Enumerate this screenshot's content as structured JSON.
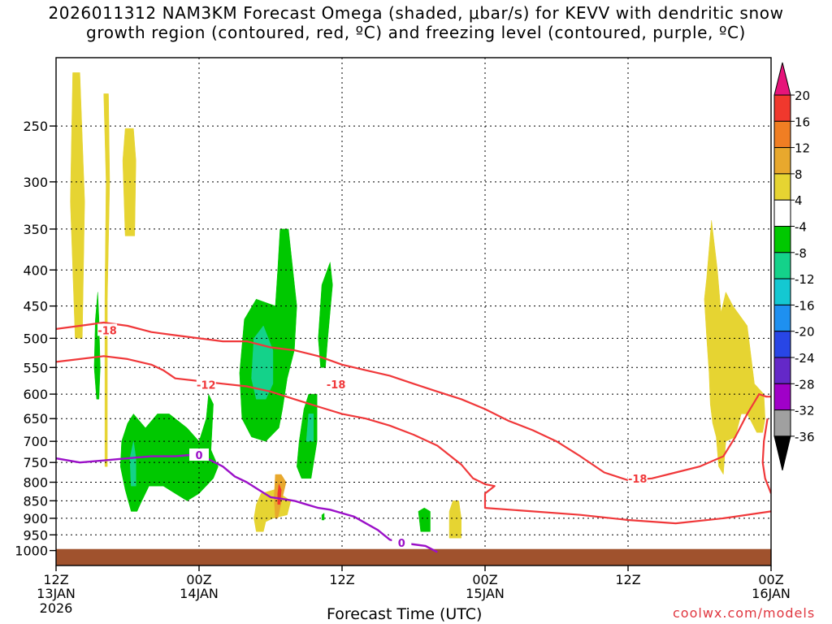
{
  "title_lines": [
    "2026011312 NAM3KM Forecast Omega (shaded, μbar/s) for KEVV with dendritic snow",
    "growth region (contoured, red, ºC) and freezing level (contoured, purple, ºC)"
  ],
  "credit": "coolwx.com/models",
  "chart_data": {
    "type": "heatmap",
    "title": "2026011312 NAM3KM Forecast Omega (shaded, μbar/s) for KEVV with dendritic snow growth region (contoured, red, ºC) and freezing level (contoured, purple, ºC)",
    "xlabel": "Forecast Time (UTC)",
    "ylabel": "",
    "x_unit": "hours from 2026-01-13 12Z",
    "xlim": [
      0,
      60
    ],
    "ylim": [
      1050,
      200
    ],
    "y_scale": "log-pressure",
    "grid": true,
    "x_ticks": [
      {
        "hour": 0,
        "label": "12Z",
        "sub": "13JAN",
        "sub2": "2026"
      },
      {
        "hour": 12,
        "label": "00Z",
        "sub": "14JAN",
        "sub2": ""
      },
      {
        "hour": 24,
        "label": "12Z",
        "sub": "",
        "sub2": ""
      },
      {
        "hour": 36,
        "label": "00Z",
        "sub": "15JAN",
        "sub2": ""
      },
      {
        "hour": 48,
        "label": "12Z",
        "sub": "",
        "sub2": ""
      },
      {
        "hour": 60,
        "label": "00Z",
        "sub": "16JAN",
        "sub2": ""
      }
    ],
    "y_ticks": [
      250,
      300,
      350,
      400,
      450,
      500,
      550,
      600,
      650,
      700,
      750,
      800,
      850,
      900,
      950,
      1000
    ],
    "colorbar": {
      "unit": "μbar/s",
      "labels": [
        "20",
        "16",
        "12",
        "8",
        "4",
        "-4",
        "-8",
        "-12",
        "-16",
        "-20",
        "-24",
        "-28",
        "-32",
        "-36"
      ],
      "bands": [
        {
          "range": "16 to 20",
          "color": "#f0382d"
        },
        {
          "range": "12 to 16",
          "color": "#f07e23"
        },
        {
          "range": "8 to 12",
          "color": "#e8a82d"
        },
        {
          "range": "4 to 8",
          "color": "#e6d432"
        },
        {
          "range": "-4 to 4",
          "color": "#ffffff"
        },
        {
          "range": "-8 to -4",
          "color": "#00c800"
        },
        {
          "range": "-12 to -8",
          "color": "#14d28a"
        },
        {
          "range": "-16 to -12",
          "color": "#14c8d2"
        },
        {
          "range": "-20 to -16",
          "color": "#1e90f0"
        },
        {
          "range": "-24 to -20",
          "color": "#2846e6"
        },
        {
          "range": "-28 to -24",
          "color": "#6428c8"
        },
        {
          "range": "-32 to -28",
          "color": "#a000c8"
        },
        {
          "range": "-36 to -32",
          "color": "#a0a0a0"
        }
      ],
      "over_color": "#e6147a",
      "under_color": "#000000"
    },
    "omega_regions": [
      {
        "band": "4 to 8",
        "color": "#e6d432",
        "pts": [
          [
            1.6,
            500
          ],
          [
            1.2,
            320
          ],
          [
            1.4,
            210
          ],
          [
            2.0,
            210
          ],
          [
            2.4,
            320
          ],
          [
            2.2,
            500
          ]
        ]
      },
      {
        "band": "4 to 8",
        "color": "#e6d432",
        "pts": [
          [
            4.1,
            760
          ],
          [
            4.1,
            440
          ],
          [
            4.2,
            300
          ],
          [
            4.0,
            225
          ],
          [
            4.4,
            225
          ],
          [
            4.5,
            300
          ],
          [
            4.3,
            440
          ],
          [
            4.3,
            760
          ]
        ]
      },
      {
        "band": "4 to 8",
        "color": "#e6d432",
        "pts": [
          [
            5.8,
            358
          ],
          [
            5.6,
            280
          ],
          [
            5.8,
            252
          ],
          [
            6.5,
            252
          ],
          [
            6.7,
            280
          ],
          [
            6.6,
            358
          ]
        ]
      },
      {
        "band": "-8 to -4",
        "color": "#00c800",
        "pts": [
          [
            3.2,
            550
          ],
          [
            3.3,
            470
          ],
          [
            3.5,
            430
          ],
          [
            3.6,
            470
          ],
          [
            3.7,
            550
          ],
          [
            3.6,
            610
          ],
          [
            3.4,
            610
          ]
        ]
      },
      {
        "band": "-8 to -4",
        "color": "#00c800",
        "pts": [
          [
            5.5,
            700
          ],
          [
            6.0,
            660
          ],
          [
            6.5,
            640
          ],
          [
            7.5,
            670
          ],
          [
            8.5,
            640
          ],
          [
            9.5,
            640
          ],
          [
            11.0,
            670
          ],
          [
            12.0,
            700
          ],
          [
            12.6,
            650
          ],
          [
            12.8,
            600
          ],
          [
            13.2,
            620
          ],
          [
            13.0,
            720
          ],
          [
            13.6,
            760
          ],
          [
            13.2,
            790
          ],
          [
            12.0,
            830
          ],
          [
            11.0,
            850
          ],
          [
            10.0,
            830
          ],
          [
            9.0,
            810
          ],
          [
            7.8,
            810
          ],
          [
            7.2,
            850
          ],
          [
            6.8,
            880
          ],
          [
            6.3,
            880
          ],
          [
            5.8,
            820
          ],
          [
            5.4,
            760
          ]
        ]
      },
      {
        "band": "-12 to -8",
        "color": "#14d28a",
        "pts": [
          [
            6.2,
            740
          ],
          [
            6.5,
            700
          ],
          [
            6.7,
            740
          ],
          [
            6.7,
            810
          ],
          [
            6.3,
            810
          ]
        ]
      },
      {
        "band": "-8 to -4",
        "color": "#00c800",
        "pts": [
          [
            15.6,
            650
          ],
          [
            15.4,
            560
          ],
          [
            15.8,
            470
          ],
          [
            16.8,
            440
          ],
          [
            18.4,
            450
          ],
          [
            18.6,
            400
          ],
          [
            18.8,
            350
          ],
          [
            19.5,
            350
          ],
          [
            20.2,
            450
          ],
          [
            20.0,
            520
          ],
          [
            19.4,
            570
          ],
          [
            19.0,
            630
          ],
          [
            18.7,
            670
          ],
          [
            17.6,
            700
          ],
          [
            16.4,
            690
          ]
        ]
      },
      {
        "band": "-12 to -8",
        "color": "#14d28a",
        "pts": [
          [
            16.4,
            570
          ],
          [
            16.6,
            500
          ],
          [
            17.4,
            480
          ],
          [
            18.2,
            520
          ],
          [
            18.2,
            580
          ],
          [
            17.6,
            610
          ],
          [
            16.8,
            610
          ]
        ]
      },
      {
        "band": "-8 to -4",
        "color": "#00c800",
        "pts": [
          [
            20.2,
            760
          ],
          [
            20.4,
            700
          ],
          [
            20.8,
            630
          ],
          [
            21.2,
            600
          ],
          [
            21.9,
            600
          ],
          [
            21.9,
            700
          ],
          [
            21.4,
            790
          ],
          [
            20.6,
            790
          ]
        ]
      },
      {
        "band": "-12 to -8",
        "color": "#14d28a",
        "pts": [
          [
            21.0,
            700
          ],
          [
            21.2,
            640
          ],
          [
            21.6,
            640
          ],
          [
            21.6,
            700
          ]
        ]
      },
      {
        "band": "-8 to -4",
        "color": "#00c800",
        "pts": [
          [
            22.0,
            500
          ],
          [
            22.3,
            420
          ],
          [
            23.0,
            390
          ],
          [
            23.2,
            420
          ],
          [
            22.8,
            500
          ],
          [
            22.6,
            550
          ],
          [
            22.2,
            550
          ]
        ]
      },
      {
        "band": "-8 to -4",
        "color": "#00c800",
        "pts": [
          [
            30.4,
            880
          ],
          [
            30.9,
            870
          ],
          [
            31.4,
            880
          ],
          [
            31.4,
            940
          ],
          [
            30.6,
            940
          ]
        ]
      },
      {
        "band": "-8 to -4",
        "color": "#00c800",
        "pts": [
          [
            22.3,
            890
          ],
          [
            22.5,
            885
          ],
          [
            22.5,
            905
          ],
          [
            22.3,
            905
          ]
        ]
      },
      {
        "band": "4 to 8",
        "color": "#e6d432",
        "pts": [
          [
            16.8,
            860
          ],
          [
            17.2,
            830
          ],
          [
            18.3,
            820
          ],
          [
            19.7,
            850
          ],
          [
            19.4,
            890
          ],
          [
            18.2,
            900
          ],
          [
            17.6,
            910
          ],
          [
            17.4,
            940
          ],
          [
            16.8,
            940
          ],
          [
            16.6,
            900
          ]
        ]
      },
      {
        "band": "8 to 12",
        "color": "#e8a82d",
        "pts": [
          [
            18.3,
            840
          ],
          [
            18.4,
            780
          ],
          [
            18.9,
            780
          ],
          [
            19.3,
            800
          ],
          [
            19.0,
            840
          ],
          [
            18.6,
            900
          ],
          [
            18.4,
            900
          ]
        ]
      },
      {
        "band": "16 to 20",
        "color": "#f0382d",
        "pts": [
          [
            18.6,
            830
          ],
          [
            18.7,
            805
          ],
          [
            18.9,
            820
          ],
          [
            18.8,
            860
          ],
          [
            18.6,
            860
          ]
        ]
      },
      {
        "band": "4 to 8",
        "color": "#e6d432",
        "pts": [
          [
            33.0,
            960
          ],
          [
            33.0,
            880
          ],
          [
            33.3,
            850
          ],
          [
            33.8,
            850
          ],
          [
            34.0,
            900
          ],
          [
            34.0,
            960
          ]
        ]
      },
      {
        "band": "4 to 8",
        "color": "#e6d432",
        "pts": [
          [
            54.4,
            440
          ],
          [
            54.6,
            410
          ],
          [
            55.0,
            340
          ],
          [
            55.5,
            400
          ],
          [
            55.8,
            460
          ],
          [
            56.2,
            430
          ],
          [
            56.8,
            450
          ],
          [
            58.0,
            480
          ],
          [
            58.6,
            580
          ],
          [
            59.4,
            600
          ],
          [
            59.5,
            650
          ],
          [
            59.3,
            680
          ],
          [
            58.8,
            680
          ],
          [
            58.0,
            640
          ],
          [
            57.5,
            640
          ],
          [
            57.0,
            690
          ],
          [
            56.2,
            700
          ],
          [
            56.0,
            780
          ],
          [
            55.6,
            760
          ],
          [
            55.4,
            690
          ],
          [
            55.1,
            660
          ],
          [
            54.9,
            620
          ],
          [
            54.8,
            560
          ],
          [
            54.6,
            500
          ]
        ]
      }
    ],
    "dgz_contours": [
      {
        "temp": -18,
        "pts": [
          [
            0,
            485
          ],
          [
            2,
            480
          ],
          [
            4,
            475
          ],
          [
            6,
            480
          ],
          [
            8,
            490
          ],
          [
            10,
            495
          ],
          [
            12,
            500
          ],
          [
            14,
            505
          ],
          [
            16,
            505
          ],
          [
            18,
            515
          ],
          [
            20,
            520
          ],
          [
            22,
            530
          ],
          [
            24,
            545
          ],
          [
            26,
            555
          ],
          [
            28,
            565
          ],
          [
            30,
            580
          ],
          [
            32,
            595
          ],
          [
            34,
            610
          ],
          [
            36,
            630
          ],
          [
            38,
            655
          ],
          [
            40,
            675
          ],
          [
            42,
            700
          ],
          [
            44,
            735
          ],
          [
            46,
            775
          ],
          [
            48,
            795
          ],
          [
            50,
            790
          ],
          [
            52,
            775
          ],
          [
            54,
            760
          ],
          [
            56,
            735
          ],
          [
            57,
            690
          ],
          [
            58,
            640
          ],
          [
            59,
            600
          ],
          [
            59.6,
            605
          ],
          [
            60,
            605
          ]
        ]
      },
      {
        "temp": -12,
        "pts": [
          [
            0,
            540
          ],
          [
            2,
            535
          ],
          [
            4,
            530
          ],
          [
            6,
            535
          ],
          [
            8,
            545
          ],
          [
            9,
            555
          ],
          [
            10,
            570
          ],
          [
            12,
            575
          ],
          [
            14,
            580
          ],
          [
            16,
            585
          ],
          [
            18,
            595
          ],
          [
            20,
            610
          ],
          [
            22,
            625
          ],
          [
            24,
            640
          ],
          [
            26,
            650
          ],
          [
            28,
            665
          ],
          [
            30,
            685
          ],
          [
            32,
            710
          ],
          [
            34,
            755
          ],
          [
            35,
            790
          ],
          [
            36,
            805
          ],
          [
            36.8,
            810
          ],
          [
            36,
            830
          ],
          [
            36,
            870
          ],
          [
            40,
            880
          ],
          [
            44,
            890
          ],
          [
            48,
            905
          ],
          [
            52,
            915
          ],
          [
            56,
            900
          ],
          [
            60,
            880
          ]
        ]
      },
      {
        "temp": -12,
        "pts": [
          [
            59.7,
            650
          ],
          [
            59.4,
            700
          ],
          [
            59.3,
            750
          ],
          [
            59.5,
            790
          ],
          [
            60,
            830
          ]
        ]
      }
    ],
    "dgz_labels": [
      {
        "text": "-18",
        "hour": 4.3,
        "p": 487
      },
      {
        "text": "-12",
        "hour": 12.6,
        "p": 582
      },
      {
        "text": "-18",
        "hour": 23.5,
        "p": 581
      },
      {
        "text": "-18",
        "hour": 48.8,
        "p": 790
      }
    ],
    "freezing_level": [
      [
        0,
        740
      ],
      [
        2,
        750
      ],
      [
        4,
        745
      ],
      [
        6,
        740
      ],
      [
        8,
        735
      ],
      [
        10,
        735
      ],
      [
        12,
        730
      ],
      [
        13,
        745
      ],
      [
        14,
        760
      ],
      [
        15,
        785
      ],
      [
        16,
        800
      ],
      [
        17,
        820
      ],
      [
        18,
        840
      ],
      [
        19,
        845
      ],
      [
        20,
        850
      ],
      [
        21,
        860
      ],
      [
        22,
        870
      ],
      [
        23,
        875
      ],
      [
        24,
        885
      ],
      [
        25,
        895
      ],
      [
        26,
        915
      ],
      [
        27,
        935
      ],
      [
        28,
        965
      ],
      [
        29,
        975
      ],
      [
        30,
        980
      ],
      [
        31,
        985
      ],
      [
        32,
        1005
      ]
    ],
    "fz_labels": [
      {
        "text": "0",
        "hour": 12,
        "p": 732
      },
      {
        "text": "0",
        "hour": 29,
        "p": 975
      }
    ],
    "terrain": {
      "color": "#a0522d",
      "top_hpa": 995
    }
  }
}
